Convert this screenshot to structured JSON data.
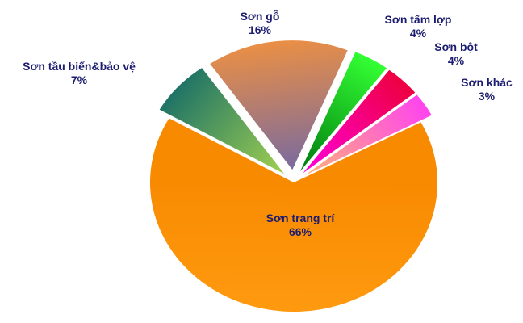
{
  "chart_data": {
    "type": "pie",
    "title": "",
    "slices": [
      {
        "label": "Sơn gỗ",
        "value": 16,
        "value_label": "16%",
        "colors": [
          "#ea8f45",
          "#7a6a9e"
        ],
        "exploded": true
      },
      {
        "label": "Sơn tấm lợp",
        "value": 4,
        "value_label": "4%",
        "colors": [
          "#33ff33",
          "#007a10"
        ],
        "exploded": true
      },
      {
        "label": "Sơn bột",
        "value": 4,
        "value_label": "4%",
        "colors": [
          "#ee0040",
          "#ff00dd"
        ],
        "exploded": true
      },
      {
        "label": "Sơn khác",
        "value": 3,
        "value_label": "3%",
        "colors": [
          "#ff44ee",
          "#ffb27a"
        ],
        "exploded": true
      },
      {
        "label": "Sơn trang trí",
        "value": 66,
        "value_label": "66%",
        "colors": [
          "#ff9a10",
          "#f88a00"
        ],
        "exploded": false
      },
      {
        "label": "Sơn tầu biển&bảo vệ",
        "value": 7,
        "value_label": "7%",
        "colors": [
          "#207466",
          "#a0d050"
        ],
        "exploded": true
      }
    ],
    "legend": "none",
    "label_color": "#1c1c70"
  }
}
